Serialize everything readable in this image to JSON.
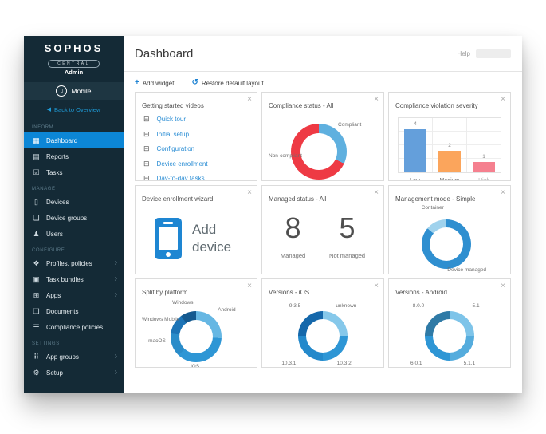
{
  "ui": {
    "close": "×",
    "add": "+",
    "restore": "↺",
    "back_arrow": "◀",
    "chevron": "›"
  },
  "icons": {
    "mobile-icon": "▯",
    "dashboard-icon": "▦",
    "reports-icon": "▤",
    "tasks-icon": "☑",
    "devices-icon": "▯",
    "device-groups-icon": "❏",
    "users-icon": "♟",
    "profiles-policies-icon": "❖",
    "task-bundles-icon": "▣",
    "apps-icon": "⊞",
    "documents-icon": "❑",
    "compliance-policies-icon": "☰",
    "app-groups-icon": "⠿",
    "setup-icon": "⚙",
    "video-icon": "⊟"
  },
  "colors": {
    "sidebar_bg": "#142a36",
    "active_item": "#0c86d6",
    "link_blue": "#2a8dd4",
    "accent_blue": "#1d82d2",
    "donut_red": "#ee3a44",
    "donut_blue": "#5fb0df"
  },
  "sidebar": {
    "logo": {
      "brand": "SOPHOS",
      "sub": "CENTRAL",
      "role": "Admin"
    },
    "product": {
      "label": "Mobile"
    },
    "back_link": "Back to Overview",
    "sections": [
      {
        "heading": "INFORM",
        "items": [
          {
            "label": "Dashboard",
            "icon": "dashboard-icon",
            "active": true
          },
          {
            "label": "Reports",
            "icon": "reports-icon"
          },
          {
            "label": "Tasks",
            "icon": "tasks-icon"
          }
        ]
      },
      {
        "heading": "MANAGE",
        "items": [
          {
            "label": "Devices",
            "icon": "devices-icon"
          },
          {
            "label": "Device groups",
            "icon": "device-groups-icon"
          },
          {
            "label": "Users",
            "icon": "users-icon"
          }
        ]
      },
      {
        "heading": "CONFIGURE",
        "items": [
          {
            "label": "Profiles, policies",
            "icon": "profiles-policies-icon",
            "chevron": true
          },
          {
            "label": "Task bundles",
            "icon": "task-bundles-icon",
            "chevron": true
          },
          {
            "label": "Apps",
            "icon": "apps-icon",
            "chevron": true
          },
          {
            "label": "Documents",
            "icon": "documents-icon"
          },
          {
            "label": "Compliance policies",
            "icon": "compliance-policies-icon"
          }
        ]
      },
      {
        "heading": "SETTINGS",
        "items": [
          {
            "label": "App groups",
            "icon": "app-groups-icon",
            "chevron": true
          },
          {
            "label": "Setup",
            "icon": "setup-icon",
            "chevron": true
          }
        ]
      }
    ]
  },
  "header": {
    "title": "Dashboard",
    "help": "Help"
  },
  "toolbar": {
    "add_widget": "Add widget",
    "restore": "Restore default layout"
  },
  "widgets": {
    "videos": {
      "title": "Getting started videos",
      "links": [
        "Quick tour",
        "Initial setup",
        "Configuration",
        "Device enrollment",
        "Day-to-day tasks"
      ]
    },
    "compliance_status": {
      "title": "Compliance status - All"
    },
    "violation_severity": {
      "title": "Compliance violation severity"
    },
    "wizard": {
      "title": "Device enrollment wizard",
      "cta": "Add device"
    },
    "managed_status": {
      "title": "Managed status - All",
      "metrics": [
        {
          "value": "8",
          "label": "Managed"
        },
        {
          "value": "5",
          "label": "Not managed"
        }
      ]
    },
    "management_mode": {
      "title": "Management mode - Simple"
    },
    "split_platform": {
      "title": "Split by platform"
    },
    "versions_ios": {
      "title": "Versions - iOS"
    },
    "versions_android": {
      "title": "Versions - Android"
    }
  },
  "chart_data": [
    {
      "id": "compliance_status",
      "type": "donut",
      "title": "Compliance status - All",
      "labels": [
        "Compliant",
        "Non-compliant"
      ],
      "values_percent": [
        32,
        68
      ],
      "colors": [
        "#5fb0df",
        "#ee3a44"
      ],
      "legend_position": "around"
    },
    {
      "id": "violation_severity",
      "type": "bar",
      "title": "Compliance violation severity",
      "categories": [
        "Low",
        "Medium",
        "High"
      ],
      "values": [
        4,
        2,
        1
      ],
      "colors": [
        "#649fdb",
        "#fba55c",
        "#f5808f"
      ],
      "ylim": [
        0,
        4
      ],
      "grid": true,
      "xlabel": "",
      "ylabel": ""
    },
    {
      "id": "management_mode",
      "type": "donut",
      "title": "Management mode - Simple",
      "labels": [
        "Device managed",
        "Container"
      ],
      "values_percent": [
        86,
        14
      ],
      "colors": [
        "#2f8fd0",
        "#9fd2ed"
      ],
      "legend_position": "around"
    },
    {
      "id": "split_platform",
      "type": "donut",
      "title": "Split by platform",
      "labels": [
        "Android",
        "iOS",
        "macOS",
        "Windows Mobile",
        "Windows"
      ],
      "values_percent": [
        26,
        36,
        15,
        13,
        10
      ],
      "colors": [
        "#66b7e3",
        "#2e96d5",
        "#2a8cc9",
        "#1d74b6",
        "#14598f"
      ],
      "legend_position": "around"
    },
    {
      "id": "versions_ios",
      "type": "donut",
      "title": "Versions - iOS",
      "labels": [
        "unknown",
        "10.3.2",
        "10.3.1",
        "9.3.5"
      ],
      "values_percent": [
        25,
        25,
        25,
        25
      ],
      "colors": [
        "#86c8ea",
        "#2e96d5",
        "#2389cb",
        "#1568ab"
      ],
      "legend_position": "around"
    },
    {
      "id": "versions_android",
      "type": "donut",
      "title": "Versions - Android",
      "labels": [
        "5.1",
        "5.1.1",
        "6.0.1",
        "8.0.0"
      ],
      "values_percent": [
        25,
        25,
        25,
        25
      ],
      "colors": [
        "#7ec4e9",
        "#55acdd",
        "#2e96d5",
        "#2f7aa6"
      ],
      "legend_position": "around"
    }
  ]
}
